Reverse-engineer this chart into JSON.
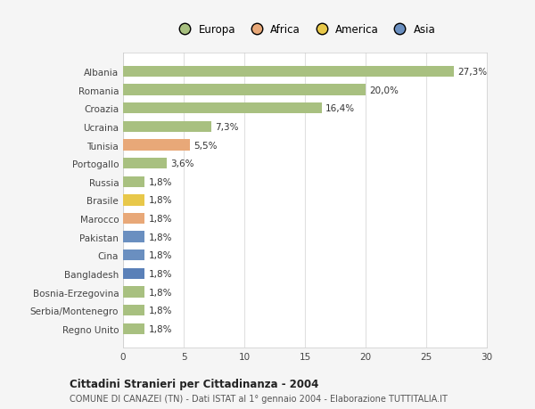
{
  "categories": [
    "Albania",
    "Romania",
    "Croazia",
    "Ucraina",
    "Tunisia",
    "Portogallo",
    "Russia",
    "Brasile",
    "Marocco",
    "Pakistan",
    "Cina",
    "Bangladesh",
    "Bosnia-Erzegovina",
    "Serbia/Montenegro",
    "Regno Unito"
  ],
  "values": [
    27.3,
    20.0,
    16.4,
    7.3,
    5.5,
    3.6,
    1.8,
    1.8,
    1.8,
    1.8,
    1.8,
    1.8,
    1.8,
    1.8,
    1.8
  ],
  "labels": [
    "27,3%",
    "20,0%",
    "16,4%",
    "7,3%",
    "5,5%",
    "3,6%",
    "1,8%",
    "1,8%",
    "1,8%",
    "1,8%",
    "1,8%",
    "1,8%",
    "1,8%",
    "1,8%",
    "1,8%"
  ],
  "colors": [
    "#a8c080",
    "#a8c080",
    "#a8c080",
    "#a8c080",
    "#e8a878",
    "#a8c080",
    "#a8c080",
    "#e8c84a",
    "#e8a878",
    "#6a8fc0",
    "#6a8fc0",
    "#5a80b8",
    "#a8c080",
    "#a8c080",
    "#a8c080"
  ],
  "legend_labels": [
    "Europa",
    "Africa",
    "America",
    "Asia"
  ],
  "legend_colors": [
    "#a8c080",
    "#e8a878",
    "#e8c84a",
    "#6a8fc0"
  ],
  "title": "Cittadini Stranieri per Cittadinanza - 2004",
  "subtitle": "COMUNE DI CANAZEI (TN) - Dati ISTAT al 1° gennaio 2004 - Elaborazione TUTTITALIA.IT",
  "xlim": [
    0,
    30
  ],
  "xticks": [
    0,
    5,
    10,
    15,
    20,
    25,
    30
  ],
  "bg_color": "#f5f5f5",
  "plot_bg_color": "#ffffff",
  "grid_color": "#e0e0e0"
}
